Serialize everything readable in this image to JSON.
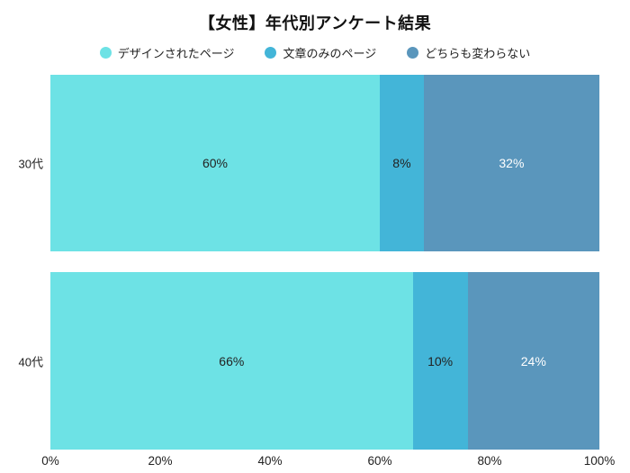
{
  "title": "【女性】年代別アンケート結果",
  "chart_data": {
    "type": "bar",
    "subtype": "horizontal-stacked",
    "title": "【女性】年代別アンケート結果",
    "categories": [
      "30代",
      "40代"
    ],
    "series": [
      {
        "name": "デザインされたページ",
        "color": "#6DE2E5",
        "label_color": "#222222",
        "values": [
          60,
          66
        ]
      },
      {
        "name": "文章のみのページ",
        "color": "#43B5D8",
        "label_color": "#222222",
        "values": [
          8,
          10
        ]
      },
      {
        "name": "どちらも変わらない",
        "color": "#5A96BC",
        "label_color": "#ffffff",
        "values": [
          32,
          24
        ]
      }
    ],
    "value_suffix": "%",
    "x_ticks": [
      0,
      20,
      40,
      60,
      80,
      100
    ],
    "x_tick_labels": [
      "0%",
      "20%",
      "40%",
      "60%",
      "80%",
      "100%"
    ],
    "xlim": [
      0,
      100
    ],
    "legend_position": "top",
    "grid": false,
    "background": "#ffffff"
  }
}
